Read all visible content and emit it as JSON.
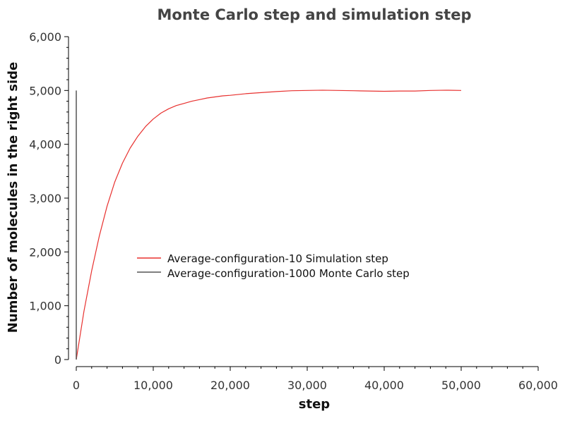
{
  "chart_data": {
    "type": "line",
    "title": "Monte Carlo step and simulation step",
    "xlabel": "step",
    "ylabel": "Number of molecules in the right side",
    "xlim": [
      0,
      60000
    ],
    "ylim": [
      0,
      6000
    ],
    "x_ticks": [
      0,
      10000,
      20000,
      30000,
      40000,
      50000,
      60000
    ],
    "x_tick_labels": [
      "0",
      "10,000",
      "20,000",
      "30,000",
      "40,000",
      "50,000",
      "60,000"
    ],
    "y_ticks": [
      0,
      1000,
      2000,
      3000,
      4000,
      5000,
      6000
    ],
    "y_tick_labels": [
      "0",
      "1,000",
      "2,000",
      "3,000",
      "4,000",
      "5,000",
      "6,000"
    ],
    "grid": false,
    "legend_position": "center-left",
    "series": [
      {
        "name": "Average-configuration-10 Simulation step",
        "color": "#e8312f",
        "x": [
          0,
          1000,
          2000,
          3000,
          4000,
          5000,
          6000,
          7000,
          8000,
          9000,
          10000,
          11000,
          12000,
          13000,
          14000,
          15000,
          16000,
          17000,
          18000,
          19000,
          20000,
          22000,
          24000,
          26000,
          28000,
          30000,
          32000,
          34000,
          36000,
          38000,
          40000,
          42000,
          44000,
          46000,
          48000,
          50000
        ],
        "y": [
          0,
          900,
          1650,
          2300,
          2850,
          3300,
          3650,
          3930,
          4150,
          4330,
          4470,
          4580,
          4660,
          4720,
          4760,
          4800,
          4830,
          4860,
          4880,
          4900,
          4910,
          4940,
          4960,
          4980,
          4995,
          5000,
          5005,
          5000,
          4995,
          4990,
          4985,
          4990,
          4990,
          5000,
          5005,
          5000
        ]
      },
      {
        "name": "Average-configuration-1000 Monte Carlo step",
        "color": "#555555",
        "x": [
          0,
          0
        ],
        "y": [
          0,
          5000
        ]
      }
    ]
  }
}
